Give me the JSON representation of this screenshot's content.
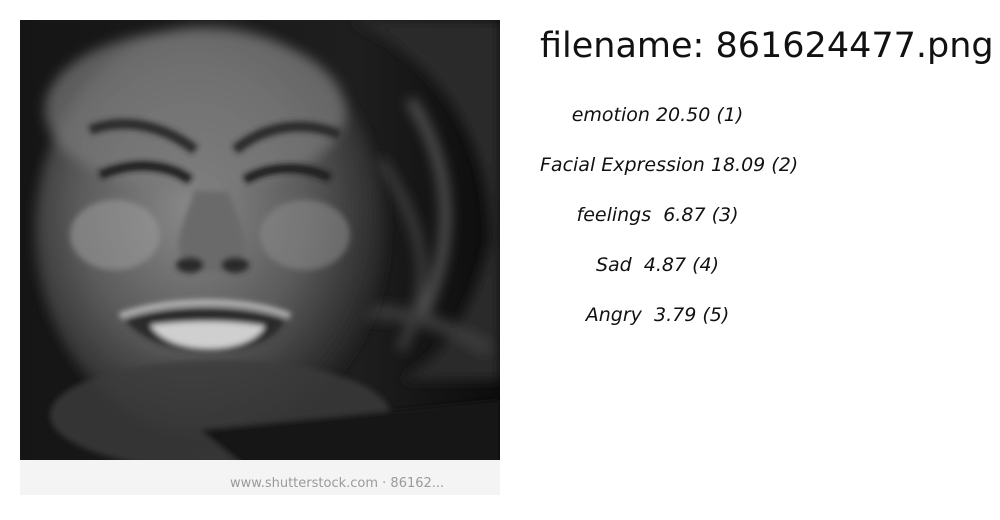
{
  "image": {
    "alt": "",
    "watermark_text": "www.shutterstock.com · 86162..."
  },
  "header": {
    "filename_label": "filename: 861624477.png"
  },
  "tags": [
    {
      "label": "emotion 20.50 (1)"
    },
    {
      "label": "Facial Expression 18.09 (2)"
    },
    {
      "label": "feelings  6.87 (3)"
    },
    {
      "label": "Sad  4.87 (4)"
    },
    {
      "label": "Angry  3.79 (5)"
    }
  ]
}
